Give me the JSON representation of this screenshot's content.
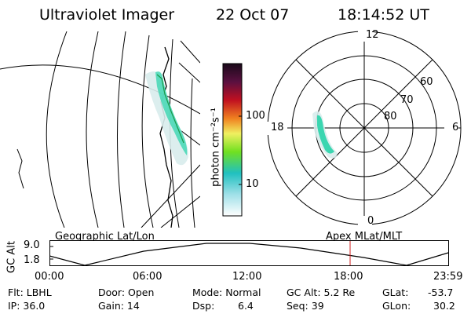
{
  "header": {
    "instrument": "Ultraviolet Imager",
    "date": "22 Oct 07",
    "time": "18:14:52 UT"
  },
  "colorbar": {
    "ticks": [
      "100",
      "10"
    ],
    "label": "photon cm⁻²s⁻¹"
  },
  "polar_plot": {
    "mlt_labels": [
      "12",
      "18",
      "6",
      "0"
    ],
    "lat_labels": [
      "60",
      "70",
      "80"
    ]
  },
  "timeline": {
    "left_caption": "Geographic Lat/Lon",
    "right_caption": "Apex MLat/MLT",
    "ylabel": "GC Alt",
    "y_ticks": [
      "9.0",
      "1.8"
    ],
    "x_ticks": [
      "00:00",
      "06:00",
      "12:00",
      "18:00",
      "23:59"
    ]
  },
  "footer": {
    "flt": "Flt: LBHL",
    "ip": "IP: 36.0",
    "door": "Door: Open",
    "gain": "Gain: 14",
    "mode": "Mode: Normal",
    "dsp_label": "Dsp:",
    "dsp_value": "6.4",
    "gc_alt": "GC Alt: 5.2 Re",
    "seq": "Seq: 39",
    "glat_label": "GLat:",
    "glat_value": "-53.7",
    "glon_label": "GLon:",
    "glon_value": "30.2"
  },
  "colors": {
    "aurora": "#3ad6b0",
    "marker": "#d02020"
  }
}
